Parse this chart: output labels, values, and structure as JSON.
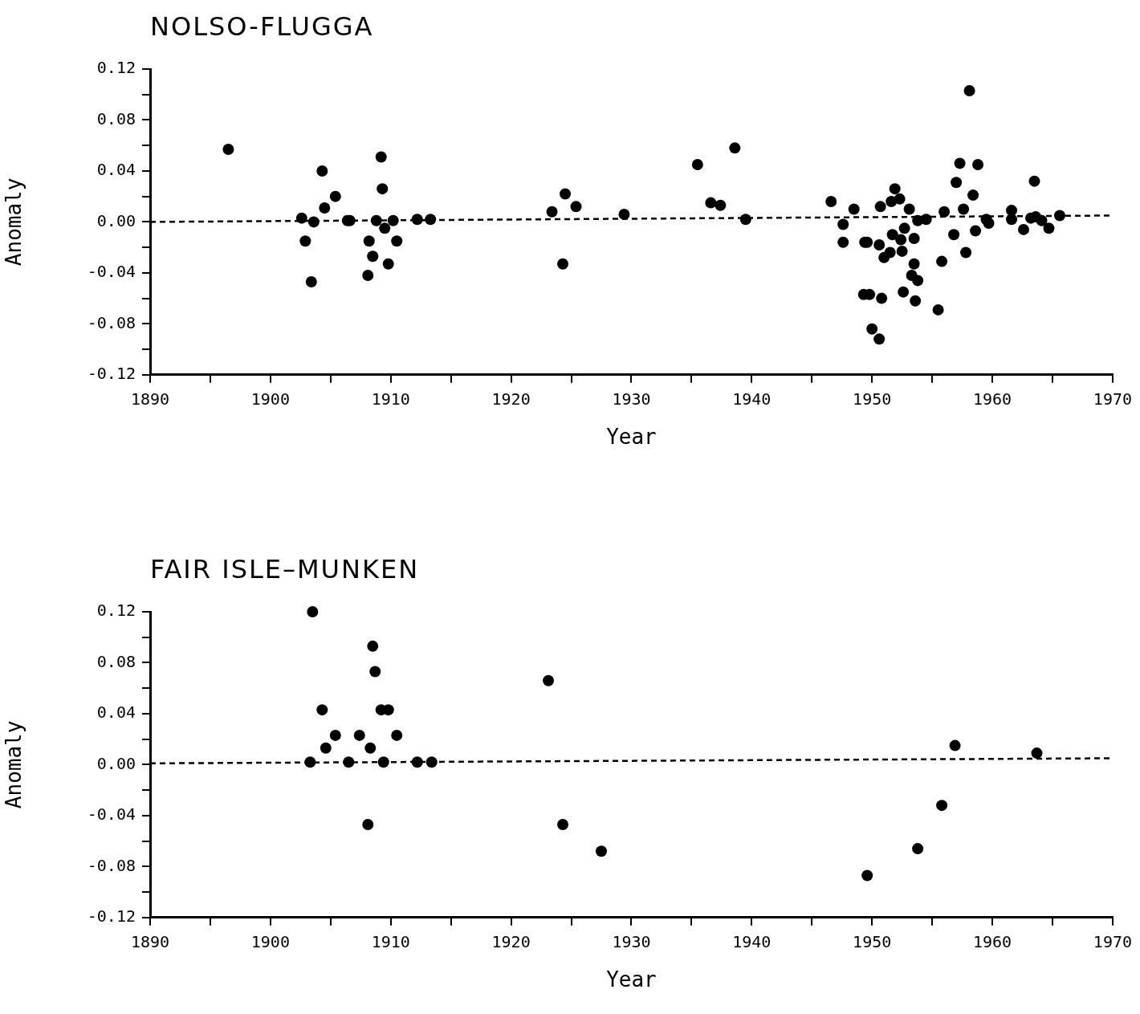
{
  "chart_data": [
    {
      "type": "scatter",
      "title": "NOLSO-FLUGGA",
      "xlabel": "Year",
      "ylabel": "Anomaly",
      "marker": "circle",
      "grid": false,
      "legend": false,
      "xlim": [
        1890,
        1970
      ],
      "xticks": [
        1890,
        {
          "value": 1895,
          "label": null
        },
        1900,
        {
          "value": 1905,
          "label": null
        },
        1910,
        {
          "value": 1915,
          "label": null
        },
        1920,
        {
          "value": 1925,
          "label": null
        },
        1930,
        {
          "value": 1935,
          "label": null
        },
        1940,
        {
          "value": 1945,
          "label": null
        },
        1950,
        {
          "value": 1955,
          "label": null
        },
        1960,
        {
          "value": 1965,
          "label": null
        },
        1970
      ],
      "ylim": [
        -0.12,
        0.12
      ],
      "yticks": [
        {
          "value": -0.12,
          "label": "-0.12"
        },
        {
          "value": -0.1,
          "label": null
        },
        {
          "value": -0.08,
          "label": "-0.08"
        },
        {
          "value": -0.06,
          "label": null
        },
        {
          "value": -0.04,
          "label": "-0.04"
        },
        {
          "value": -0.02,
          "label": null
        },
        {
          "value": 0,
          "label": "0.00"
        },
        {
          "value": 0.02,
          "label": null
        },
        {
          "value": 0.04,
          "label": "0.04"
        },
        {
          "value": 0.06,
          "label": null
        },
        {
          "value": 0.08,
          "label": "0.08"
        },
        {
          "value": 0.1,
          "label": null
        },
        {
          "value": 0.12,
          "label": "0.12"
        }
      ],
      "series": [
        {
          "type": "scatter",
          "color": "#000000",
          "x": [
            1896.5,
            1902.6,
            1902.9,
            1903.4,
            1903.6,
            1904.3,
            1904.5,
            1905.4,
            1906.4,
            1906.6,
            1908.1,
            1908.2,
            1908.5,
            1908.8,
            1909.2,
            1909.3,
            1909.5,
            1909.8,
            1910.2,
            1910.5,
            1912.2,
            1913.3,
            1923.4,
            1924.5,
            1924.3,
            1925.4,
            1929.4,
            1935.5,
            1936.6,
            1937.4,
            1938.6,
            1939.5,
            1946.6,
            1947.6,
            1947.6,
            1948.5,
            1949.4,
            1949.6,
            1949.3,
            1949.8,
            1950.0,
            1950.6,
            1950.6,
            1950.7,
            1950.8,
            1951.0,
            1951.5,
            1951.6,
            1951.7,
            1951.9,
            1952.3,
            1952.4,
            1952.5,
            1952.7,
            1952.6,
            1953.1,
            1953.3,
            1953.5,
            1953.5,
            1953.8,
            1953.6,
            1953.8,
            1954.5,
            1955.5,
            1955.8,
            1956.0,
            1956.8,
            1957.0,
            1957.3,
            1957.6,
            1957.8,
            1958.1,
            1958.4,
            1958.6,
            1958.8,
            1959.5,
            1959.7,
            1961.6,
            1961.6,
            1962.6,
            1963.2,
            1963.5,
            1963.6,
            1964.1,
            1964.7,
            1965.6
          ],
          "values": [
            0.057,
            0.003,
            -0.015,
            -0.047,
            0.0,
            0.04,
            0.011,
            0.02,
            0.001,
            0.001,
            -0.042,
            -0.015,
            -0.027,
            0.001,
            0.051,
            0.026,
            -0.005,
            -0.033,
            0.001,
            -0.015,
            0.002,
            0.002,
            0.008,
            0.022,
            -0.033,
            0.012,
            0.006,
            0.045,
            0.015,
            0.013,
            0.058,
            0.002,
            0.016,
            -0.002,
            -0.016,
            0.01,
            -0.016,
            -0.016,
            -0.057,
            -0.057,
            -0.084,
            -0.092,
            -0.018,
            0.012,
            -0.06,
            -0.028,
            -0.024,
            0.016,
            -0.01,
            0.026,
            0.018,
            -0.014,
            -0.023,
            -0.005,
            -0.055,
            0.01,
            -0.042,
            -0.013,
            -0.033,
            -0.046,
            -0.062,
            0.001,
            0.002,
            -0.069,
            -0.031,
            0.008,
            -0.01,
            0.031,
            0.046,
            0.01,
            -0.024,
            0.103,
            0.021,
            -0.007,
            0.045,
            0.002,
            -0.001,
            0.009,
            0.002,
            -0.006,
            0.003,
            0.032,
            0.004,
            0.001,
            -0.005,
            0.005
          ]
        },
        {
          "type": "line",
          "color": "#000000",
          "line_style": "dashed",
          "marker": "none",
          "x": [
            1890,
            1970
          ],
          "values": [
            0.0,
            0.005
          ]
        }
      ]
    },
    {
      "type": "scatter",
      "title": "FAIR ISLE–MUNKEN",
      "xlabel": "Year",
      "ylabel": "Anomaly",
      "marker": "circle",
      "grid": false,
      "legend": false,
      "xlim": [
        1890,
        1970
      ],
      "xticks": [
        1890,
        {
          "value": 1895,
          "label": null
        },
        1900,
        {
          "value": 1905,
          "label": null
        },
        1910,
        {
          "value": 1915,
          "label": null
        },
        1920,
        {
          "value": 1925,
          "label": null
        },
        1930,
        {
          "value": 1935,
          "label": null
        },
        1940,
        {
          "value": 1945,
          "label": null
        },
        1950,
        {
          "value": 1955,
          "label": null
        },
        1960,
        {
          "value": 1965,
          "label": null
        },
        1970
      ],
      "ylim": [
        -0.12,
        0.12
      ],
      "yticks": [
        {
          "value": -0.12,
          "label": "-0.12"
        },
        {
          "value": -0.1,
          "label": null
        },
        {
          "value": -0.08,
          "label": "-0.08"
        },
        {
          "value": -0.06,
          "label": null
        },
        {
          "value": -0.04,
          "label": "-0.04"
        },
        {
          "value": -0.02,
          "label": null
        },
        {
          "value": 0,
          "label": "0.00"
        },
        {
          "value": 0.02,
          "label": null
        },
        {
          "value": 0.04,
          "label": "0.04"
        },
        {
          "value": 0.06,
          "label": null
        },
        {
          "value": 0.08,
          "label": "0.08"
        },
        {
          "value": 0.1,
          "label": null
        },
        {
          "value": 0.12,
          "label": "0.12"
        }
      ],
      "series": [
        {
          "type": "scatter",
          "color": "#000000",
          "x": [
            1903.5,
            1903.3,
            1904.3,
            1904.6,
            1905.4,
            1906.5,
            1907.4,
            1908.1,
            1908.3,
            1908.5,
            1908.7,
            1909.2,
            1909.8,
            1909.4,
            1910.5,
            1912.2,
            1913.4,
            1923.1,
            1924.3,
            1927.5,
            1949.6,
            1953.8,
            1955.8,
            1956.9,
            1963.7
          ],
          "values": [
            0.12,
            0.002,
            0.043,
            0.013,
            0.023,
            0.002,
            0.023,
            -0.047,
            0.013,
            0.093,
            0.073,
            0.043,
            0.043,
            0.002,
            0.023,
            0.002,
            0.002,
            0.066,
            -0.047,
            -0.068,
            -0.087,
            -0.066,
            -0.032,
            0.015,
            0.009
          ]
        },
        {
          "type": "line",
          "color": "#000000",
          "line_style": "dashed",
          "marker": "none",
          "x": [
            1890,
            1970
          ],
          "values": [
            0.001,
            0.005
          ]
        }
      ]
    }
  ]
}
